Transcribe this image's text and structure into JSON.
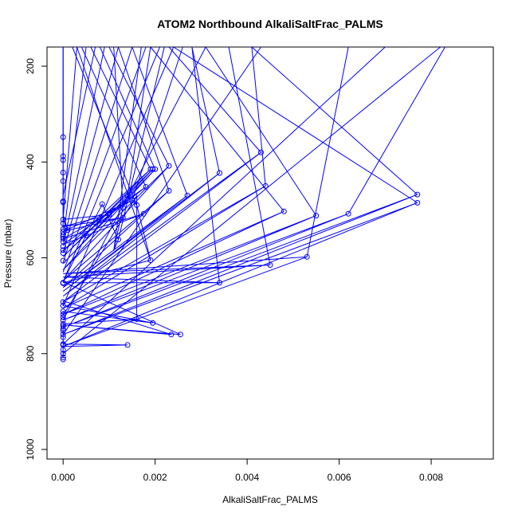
{
  "chart_data": {
    "type": "line",
    "title": "ATOM2 Northbound AlkaliSaltFrac_PALMS",
    "xlabel": "AlkaliSaltFrac_PALMS",
    "ylabel": "Pressure (mbar)",
    "xlim": [
      -0.00035,
      0.00935
    ],
    "ylim": [
      1020,
      160
    ],
    "y_reversed": true,
    "xticks": [
      0.0,
      0.002,
      0.004,
      0.006,
      0.008
    ],
    "xtick_labels": [
      "0.000",
      "0.002",
      "0.004",
      "0.006",
      "0.008"
    ],
    "yticks": [
      200,
      400,
      600,
      800,
      1000
    ],
    "ytick_labels": [
      "200",
      "400",
      "600",
      "800",
      "1000"
    ],
    "grid": false,
    "color": "#0000ff",
    "series": [
      {
        "points": [
          [
            0.0,
            810
          ],
          [
            0.0,
            800
          ],
          [
            0.0,
            780
          ],
          [
            0.0014,
            782
          ],
          [
            0.0,
            785
          ],
          [
            0.0,
            760
          ],
          [
            0.0,
            755
          ],
          [
            0.0,
            745
          ],
          [
            0.0,
            738
          ],
          [
            0.0016,
            728
          ],
          [
            0.0016,
            470
          ],
          [
            0.0,
            720
          ],
          [
            0.0,
            712
          ],
          [
            0.00195,
            736
          ],
          [
            0.0,
            700
          ],
          [
            0.0,
            690
          ],
          [
            0.00235,
            760
          ],
          [
            0.0,
            740
          ],
          [
            0.00255,
            760
          ],
          [
            0.0,
            650
          ],
          [
            0.0005,
            553
          ],
          [
            0.00085,
            488
          ],
          [
            0.0012,
            562
          ],
          [
            0.0011,
            585
          ],
          [
            0.0013,
            495
          ],
          [
            0.0014,
            470
          ],
          [
            0.0016,
            490
          ],
          [
            0.0019,
            605
          ],
          [
            0.0,
            652
          ],
          [
            0.0034,
            652
          ],
          [
            0.0,
            640
          ],
          [
            0.0045,
            615
          ],
          [
            0.0,
            633
          ],
          [
            0.0053,
            598
          ],
          [
            0.0,
            785
          ],
          [
            0.0077,
            485
          ],
          [
            0.0,
            760
          ],
          [
            0.0077,
            468
          ],
          [
            0.0,
            745
          ],
          [
            0.0062,
            508
          ],
          [
            0.0,
            730
          ],
          [
            0.0055,
            512
          ],
          [
            0.0,
            718
          ],
          [
            0.0048,
            503
          ],
          [
            0.0,
            705
          ],
          [
            0.0044,
            450
          ],
          [
            0.0,
            692
          ],
          [
            0.0043,
            380
          ],
          [
            0.0,
            680
          ],
          [
            0.0034,
            423
          ],
          [
            0.0,
            670
          ],
          [
            0.0027,
            470
          ],
          [
            0.0,
            662
          ],
          [
            0.0023,
            460
          ],
          [
            0.0,
            648
          ],
          [
            0.0023,
            408
          ],
          [
            0.0,
            625
          ],
          [
            0.002,
            415
          ],
          [
            0.0,
            612
          ],
          [
            0.00195,
            415
          ],
          [
            0.0,
            598
          ],
          [
            0.0019,
            415
          ],
          [
            0.0,
            585
          ],
          [
            0.0018,
            452
          ],
          [
            0.0,
            572
          ],
          [
            0.00175,
            508
          ],
          [
            0.0,
            560
          ],
          [
            0.0015,
            480
          ],
          [
            0.0,
            545
          ],
          [
            0.0013,
            516
          ],
          [
            0.0,
            535
          ],
          [
            0.001,
            510
          ],
          [
            0.0,
            520
          ],
          [
            0.0001,
            542
          ],
          [
            0.0,
            510
          ],
          [
            0.0,
            480
          ],
          [
            0.0,
            440
          ],
          [
            0.0,
            420
          ],
          [
            0.0,
            395
          ],
          [
            0.0,
            385
          ],
          [
            0.0,
            345
          ],
          [
            0.0,
            160
          ]
        ]
      }
    ],
    "segments": [
      [
        [
          0.0,
          565
        ],
        [
          0.0005,
          160
        ]
      ],
      [
        [
          0.0,
          575
        ],
        [
          0.0009,
          160
        ]
      ],
      [
        [
          0.0,
          590
        ],
        [
          0.0012,
          160
        ]
      ],
      [
        [
          0.0,
          610
        ],
        [
          0.0015,
          160
        ]
      ],
      [
        [
          0.0,
          630
        ],
        [
          0.0018,
          160
        ]
      ],
      [
        [
          0.0,
          650
        ],
        [
          0.0021,
          160
        ]
      ],
      [
        [
          0.0,
          700
        ],
        [
          0.0024,
          160
        ]
      ],
      [
        [
          0.0,
          730
        ],
        [
          0.0031,
          160
        ]
      ],
      [
        [
          0.0,
          760
        ],
        [
          0.0043,
          160
        ]
      ],
      [
        [
          0.0,
          780
        ],
        [
          0.007,
          160
        ]
      ],
      [
        [
          0.0,
          800
        ],
        [
          0.0082,
          160
        ]
      ],
      [
        [
          0.0,
          470
        ],
        [
          0.0007,
          160
        ]
      ],
      [
        [
          0.0,
          520
        ],
        [
          0.0003,
          160
        ]
      ],
      [
        [
          0.0,
          540
        ],
        [
          0.0,
          160
        ]
      ],
      [
        [
          0.0077,
          485
        ],
        [
          0.0024,
          160
        ]
      ],
      [
        [
          0.0077,
          468
        ],
        [
          0.0041,
          160
        ]
      ],
      [
        [
          0.0062,
          508
        ],
        [
          0.0083,
          160
        ]
      ],
      [
        [
          0.0055,
          512
        ],
        [
          0.0031,
          160
        ]
      ],
      [
        [
          0.0048,
          503
        ],
        [
          0.0019,
          160
        ]
      ],
      [
        [
          0.0044,
          450
        ],
        [
          0.0041,
          160
        ]
      ],
      [
        [
          0.0043,
          380
        ],
        [
          0.0023,
          160
        ]
      ],
      [
        [
          0.0034,
          423
        ],
        [
          0.0028,
          160
        ]
      ],
      [
        [
          0.0027,
          470
        ],
        [
          0.0015,
          160
        ]
      ],
      [
        [
          0.0023,
          460
        ],
        [
          0.0012,
          160
        ]
      ],
      [
        [
          0.0023,
          408
        ],
        [
          0.001,
          160
        ]
      ],
      [
        [
          0.002,
          415
        ],
        [
          0.0008,
          160
        ]
      ],
      [
        [
          0.0019,
          415
        ],
        [
          0.0006,
          160
        ]
      ],
      [
        [
          0.0018,
          452
        ],
        [
          0.0004,
          160
        ]
      ],
      [
        [
          0.0016,
          490
        ],
        [
          0.0002,
          160
        ]
      ],
      [
        [
          0.0015,
          480
        ],
        [
          0.0026,
          160
        ]
      ],
      [
        [
          0.0014,
          470
        ],
        [
          0.0019,
          160
        ]
      ],
      [
        [
          0.0013,
          495
        ],
        [
          0.0011,
          160
        ]
      ],
      [
        [
          0.0012,
          562
        ],
        [
          0.0022,
          160
        ]
      ],
      [
        [
          0.0011,
          585
        ],
        [
          0.0017,
          160
        ]
      ],
      [
        [
          0.0019,
          605
        ],
        [
          0.0003,
          160
        ]
      ],
      [
        [
          0.0034,
          652
        ],
        [
          0.0028,
          160
        ]
      ],
      [
        [
          0.0045,
          615
        ],
        [
          0.0036,
          160
        ]
      ],
      [
        [
          0.0053,
          598
        ],
        [
          0.0062,
          160
        ]
      ]
    ],
    "points": [
      [
        0.0,
        348
      ],
      [
        0.0,
        388
      ],
      [
        0.0,
        396
      ],
      [
        0.0,
        422
      ],
      [
        0.0,
        440
      ],
      [
        0.0,
        482
      ],
      [
        0.0,
        484
      ],
      [
        0.0,
        520
      ],
      [
        0.0,
        528
      ],
      [
        0.0,
        540
      ],
      [
        0.0,
        546
      ],
      [
        0.0,
        552
      ],
      [
        0.0,
        556
      ],
      [
        0.0,
        560
      ],
      [
        0.0,
        566
      ],
      [
        0.0,
        576
      ],
      [
        0.0,
        584
      ],
      [
        0.0,
        590
      ],
      [
        0.0,
        606
      ],
      [
        0.0,
        652
      ],
      [
        0.0,
        653
      ],
      [
        0.0,
        692
      ],
      [
        0.0,
        700
      ],
      [
        0.0,
        712
      ],
      [
        0.0,
        718
      ],
      [
        0.0,
        724
      ],
      [
        0.0,
        730
      ],
      [
        0.0,
        738
      ],
      [
        0.0,
        742
      ],
      [
        0.0,
        748
      ],
      [
        0.0,
        752
      ],
      [
        0.0,
        760
      ],
      [
        0.0,
        766
      ],
      [
        0.0,
        780
      ],
      [
        0.0,
        782
      ],
      [
        0.0,
        792
      ],
      [
        0.0,
        800
      ],
      [
        0.0,
        808
      ],
      [
        0.0,
        812
      ],
      [
        0.0001,
        542
      ],
      [
        0.0005,
        553
      ],
      [
        0.00085,
        488
      ],
      [
        0.001,
        510
      ],
      [
        0.0012,
        562
      ],
      [
        0.0013,
        516
      ],
      [
        0.0013,
        495
      ],
      [
        0.0014,
        470
      ],
      [
        0.0015,
        480
      ],
      [
        0.0016,
        490
      ],
      [
        0.00175,
        508
      ],
      [
        0.0018,
        452
      ],
      [
        0.0019,
        415
      ],
      [
        0.00195,
        415
      ],
      [
        0.002,
        415
      ],
      [
        0.0019,
        605
      ],
      [
        0.0016,
        728
      ],
      [
        0.00195,
        736
      ],
      [
        0.0014,
        782
      ],
      [
        0.00235,
        760
      ],
      [
        0.00255,
        760
      ],
      [
        0.0023,
        460
      ],
      [
        0.0023,
        408
      ],
      [
        0.0027,
        470
      ],
      [
        0.0034,
        423
      ],
      [
        0.0043,
        380
      ],
      [
        0.0044,
        450
      ],
      [
        0.0048,
        503
      ],
      [
        0.0055,
        512
      ],
      [
        0.0062,
        508
      ],
      [
        0.0077,
        485
      ],
      [
        0.0077,
        468
      ],
      [
        0.0034,
        652
      ],
      [
        0.0045,
        615
      ],
      [
        0.0053,
        598
      ]
    ]
  }
}
